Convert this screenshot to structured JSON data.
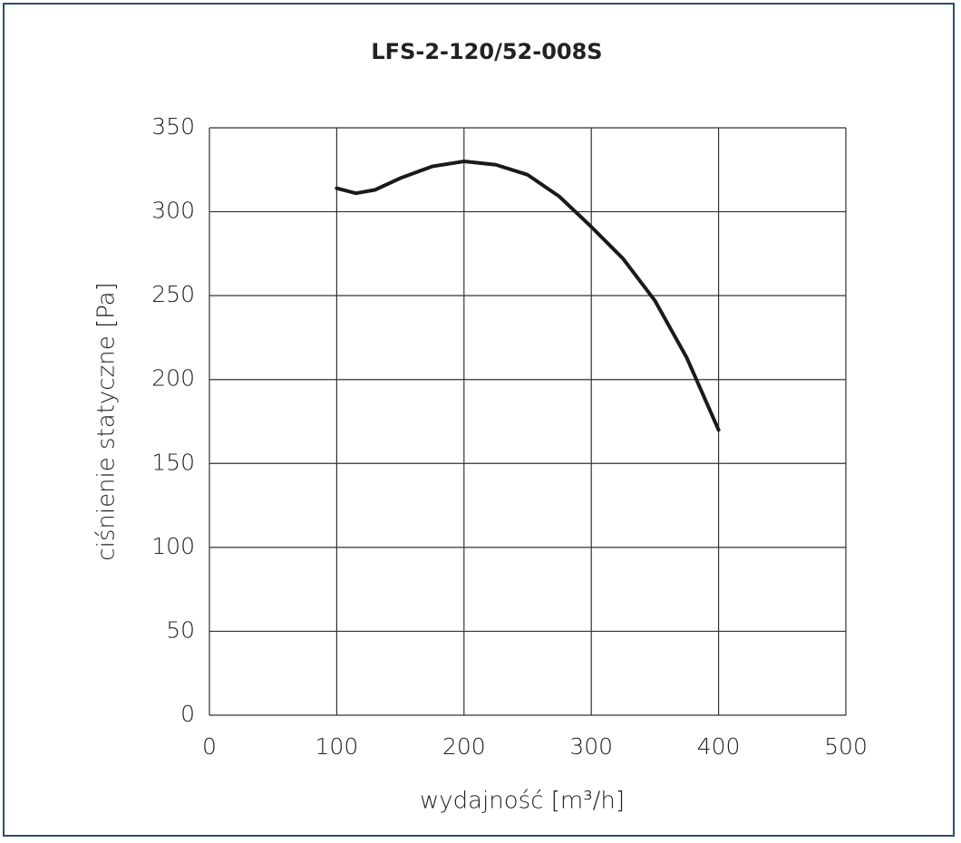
{
  "chart_data": {
    "type": "line",
    "title": "LFS-2-120/52-008S",
    "x_label": "wydajność [m³/h]",
    "y_label": "ciśnienie statyczne [Pa]",
    "xlim": [
      0,
      500
    ],
    "xticks": [
      0,
      100,
      200,
      300,
      400,
      500
    ],
    "ylim": [
      0,
      350
    ],
    "yticks": [
      0,
      50,
      100,
      150,
      200,
      250,
      300,
      350
    ],
    "grid": true,
    "series": [
      {
        "name": "LFS-2-120/52-008S",
        "color": "#1a1a1a",
        "x": [
          100,
          115,
          130,
          150,
          175,
          200,
          225,
          250,
          275,
          300,
          325,
          350,
          375,
          400
        ],
        "values": [
          314,
          311,
          313,
          320,
          327,
          330,
          328,
          322,
          309,
          291,
          272,
          247,
          213,
          170
        ]
      }
    ]
  }
}
